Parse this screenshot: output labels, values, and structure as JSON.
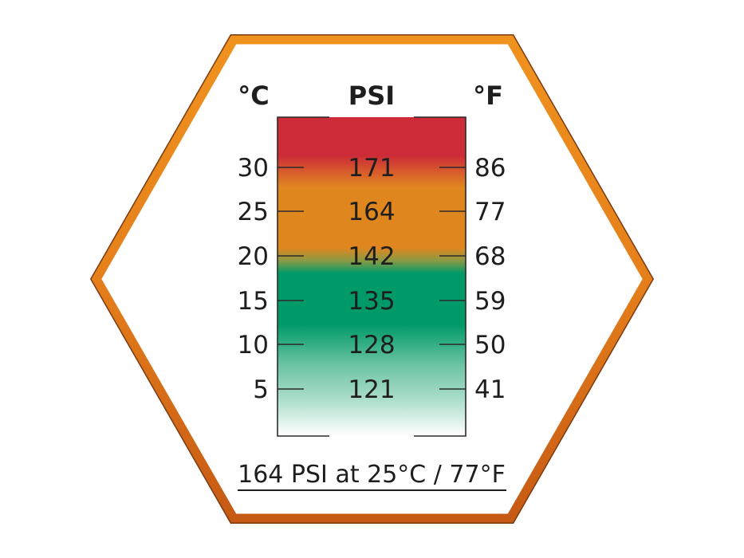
{
  "headers": {
    "celsius": "°C",
    "psi": "PSI",
    "fahrenheit": "°F"
  },
  "rows": [
    {
      "c": "30",
      "psi": "171",
      "f": "86"
    },
    {
      "c": "25",
      "psi": "164",
      "f": "77"
    },
    {
      "c": "20",
      "psi": "142",
      "f": "68"
    },
    {
      "c": "15",
      "psi": "135",
      "f": "59"
    },
    {
      "c": "10",
      "psi": "128",
      "f": "50"
    },
    {
      "c": "5",
      "psi": "121",
      "f": "41"
    }
  ],
  "caption": "164 PSI at 25°C / 77°F",
  "colors": {
    "frame_top": "#f0921e",
    "frame_bottom": "#c65a14",
    "red": "#cc2b37",
    "orange": "#e0861f",
    "green": "#009a68"
  }
}
